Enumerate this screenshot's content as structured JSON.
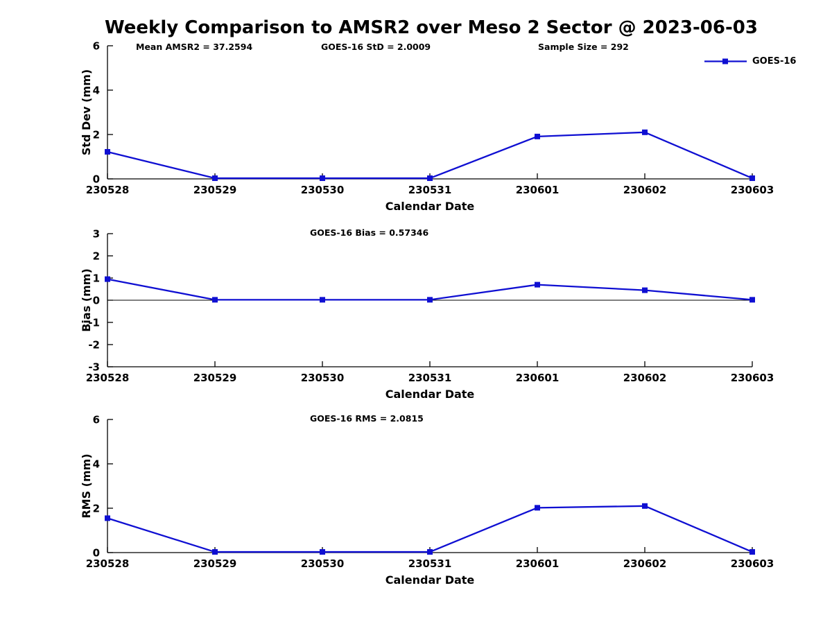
{
  "figure_title": "Weekly Comparison to AMSR2 over Meso 2 Sector @ 2023-06-03",
  "chart_data": [
    {
      "type": "line",
      "panel": "std_dev",
      "annotations": [
        "Mean AMSR2 = 37.2594",
        "GOES-16 StD = 2.0009",
        "Sample Size = 292"
      ],
      "ylabel": "Std Dev (mm)",
      "xlabel": "Calendar Date",
      "categories": [
        "230528",
        "230529",
        "230530",
        "230531",
        "230601",
        "230602",
        "230603"
      ],
      "ylim": [
        0,
        6
      ],
      "yticks": [
        0,
        2,
        4,
        6
      ],
      "grid": false,
      "zero_line": false,
      "legend_position": "top-right",
      "series": [
        {
          "name": "GOES-16",
          "color": "#0f0fd2",
          "marker": "square",
          "values": [
            1.22,
            0.03,
            0.03,
            0.03,
            1.91,
            2.1,
            0.03
          ]
        }
      ]
    },
    {
      "type": "line",
      "panel": "bias",
      "annotations": [
        "GOES-16 Bias  = 0.57346"
      ],
      "ylabel": "Bias (mm)",
      "xlabel": "Calendar Date",
      "categories": [
        "230528",
        "230529",
        "230530",
        "230531",
        "230601",
        "230602",
        "230603"
      ],
      "ylim": [
        -3,
        3
      ],
      "yticks": [
        -3,
        -2,
        -1,
        0,
        1,
        2,
        3
      ],
      "grid": false,
      "zero_line": true,
      "series": [
        {
          "name": "GOES-16",
          "color": "#0f0fd2",
          "marker": "square",
          "values": [
            0.95,
            0.02,
            0.02,
            0.02,
            0.7,
            0.45,
            0.02
          ]
        }
      ]
    },
    {
      "type": "line",
      "panel": "rms",
      "annotations": [
        "GOES-16 RMS = 2.0815"
      ],
      "ylabel": "RMS (mm)",
      "xlabel": "Calendar Date",
      "categories": [
        "230528",
        "230529",
        "230530",
        "230531",
        "230601",
        "230602",
        "230603"
      ],
      "ylim": [
        0,
        6
      ],
      "yticks": [
        0,
        2,
        4,
        6
      ],
      "grid": false,
      "zero_line": false,
      "series": [
        {
          "name": "GOES-16",
          "color": "#0f0fd2",
          "marker": "square",
          "values": [
            1.55,
            0.03,
            0.03,
            0.03,
            2.02,
            2.1,
            0.03
          ]
        }
      ]
    }
  ]
}
